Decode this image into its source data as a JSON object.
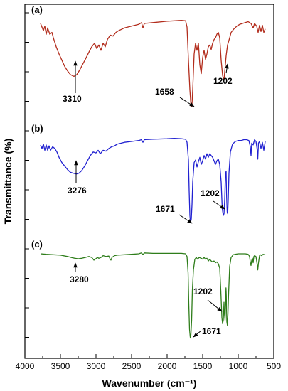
{
  "chart_data": {
    "type": "line",
    "xlabel": "Wavenumber (cm⁻¹)",
    "ylabel": "Transmittance (%)",
    "xlim": [
      4000,
      500
    ],
    "x_reversed": true,
    "xticks": [
      "4000",
      "3500",
      "3000",
      "2500",
      "2000",
      "1500",
      "1000",
      "500"
    ],
    "grid": false,
    "y_tick_labels": "none",
    "panels": [
      {
        "label": "(a)",
        "color": "#b22c1c",
        "series": [
          [
            3780,
            0.96
          ],
          [
            3740,
            0.88
          ],
          [
            3720,
            0.93
          ],
          [
            3700,
            0.84
          ],
          [
            3680,
            0.91
          ],
          [
            3650,
            0.84
          ],
          [
            3620,
            0.86
          ],
          [
            3600,
            0.8
          ],
          [
            3560,
            0.7
          ],
          [
            3520,
            0.62
          ],
          [
            3480,
            0.55
          ],
          [
            3440,
            0.48
          ],
          [
            3400,
            0.43
          ],
          [
            3360,
            0.39
          ],
          [
            3310,
            0.37
          ],
          [
            3270,
            0.39
          ],
          [
            3230,
            0.44
          ],
          [
            3190,
            0.5
          ],
          [
            3150,
            0.56
          ],
          [
            3100,
            0.64
          ],
          [
            3060,
            0.7
          ],
          [
            3020,
            0.74
          ],
          [
            2990,
            0.68
          ],
          [
            2960,
            0.72
          ],
          [
            2930,
            0.66
          ],
          [
            2900,
            0.74
          ],
          [
            2870,
            0.7
          ],
          [
            2840,
            0.78
          ],
          [
            2800,
            0.83
          ],
          [
            2760,
            0.82
          ],
          [
            2720,
            0.86
          ],
          [
            2680,
            0.88
          ],
          [
            2600,
            0.91
          ],
          [
            2500,
            0.93
          ],
          [
            2400,
            0.95
          ],
          [
            2360,
            0.97
          ],
          [
            2340,
            0.91
          ],
          [
            2320,
            0.96
          ],
          [
            2200,
            0.97
          ],
          [
            2000,
            0.985
          ],
          [
            1900,
            0.99
          ],
          [
            1800,
            0.995
          ],
          [
            1740,
            0.99
          ],
          [
            1720,
            0.92
          ],
          [
            1700,
            0.55
          ],
          [
            1680,
            0.22
          ],
          [
            1665,
            0.05
          ],
          [
            1658,
            0.03
          ],
          [
            1650,
            0.06
          ],
          [
            1640,
            0.22
          ],
          [
            1620,
            0.62
          ],
          [
            1600,
            0.74
          ],
          [
            1580,
            0.66
          ],
          [
            1560,
            0.74
          ],
          [
            1540,
            0.5
          ],
          [
            1520,
            0.4
          ],
          [
            1500,
            0.58
          ],
          [
            1480,
            0.66
          ],
          [
            1460,
            0.56
          ],
          [
            1440,
            0.62
          ],
          [
            1420,
            0.7
          ],
          [
            1400,
            0.72
          ],
          [
            1380,
            0.67
          ],
          [
            1360,
            0.74
          ],
          [
            1340,
            0.78
          ],
          [
            1320,
            0.8
          ],
          [
            1300,
            0.84
          ],
          [
            1280,
            0.86
          ],
          [
            1260,
            0.8
          ],
          [
            1240,
            0.55
          ],
          [
            1220,
            0.38
          ],
          [
            1202,
            0.32
          ],
          [
            1190,
            0.42
          ],
          [
            1170,
            0.6
          ],
          [
            1150,
            0.72
          ],
          [
            1120,
            0.8
          ],
          [
            1100,
            0.86
          ],
          [
            1060,
            0.9
          ],
          [
            1020,
            0.93
          ],
          [
            980,
            0.95
          ],
          [
            940,
            0.96
          ],
          [
            900,
            0.97
          ],
          [
            860,
            0.98
          ],
          [
            820,
            0.96
          ],
          [
            790,
            0.91
          ],
          [
            770,
            0.96
          ],
          [
            740,
            0.93
          ],
          [
            720,
            0.86
          ],
          [
            700,
            0.94
          ],
          [
            680,
            0.87
          ],
          [
            660,
            0.94
          ],
          [
            640,
            0.86
          ],
          [
            620,
            0.9
          ]
        ],
        "annotations": [
          {
            "text": "3310",
            "x": 3310
          },
          {
            "text": "1658",
            "x": 1658
          },
          {
            "text": "1202",
            "x": 1202
          }
        ]
      },
      {
        "label": "(b)",
        "color": "#2121d1",
        "series": [
          [
            3780,
            0.92
          ],
          [
            3760,
            0.88
          ],
          [
            3740,
            0.93
          ],
          [
            3720,
            0.86
          ],
          [
            3700,
            0.92
          ],
          [
            3680,
            0.86
          ],
          [
            3660,
            0.91
          ],
          [
            3640,
            0.86
          ],
          [
            3610,
            0.9
          ],
          [
            3580,
            0.88
          ],
          [
            3550,
            0.84
          ],
          [
            3520,
            0.78
          ],
          [
            3480,
            0.72
          ],
          [
            3440,
            0.68
          ],
          [
            3400,
            0.64
          ],
          [
            3360,
            0.61
          ],
          [
            3320,
            0.6
          ],
          [
            3276,
            0.59
          ],
          [
            3240,
            0.6
          ],
          [
            3200,
            0.63
          ],
          [
            3160,
            0.68
          ],
          [
            3120,
            0.74
          ],
          [
            3080,
            0.8
          ],
          [
            3040,
            0.84
          ],
          [
            3000,
            0.83
          ],
          [
            2970,
            0.86
          ],
          [
            2940,
            0.82
          ],
          [
            2900,
            0.86
          ],
          [
            2860,
            0.85
          ],
          [
            2820,
            0.88
          ],
          [
            2780,
            0.9
          ],
          [
            2740,
            0.91
          ],
          [
            2700,
            0.93
          ],
          [
            2600,
            0.95
          ],
          [
            2500,
            0.96
          ],
          [
            2400,
            0.97
          ],
          [
            2360,
            0.98
          ],
          [
            2340,
            0.95
          ],
          [
            2320,
            0.98
          ],
          [
            2200,
            0.985
          ],
          [
            2000,
            0.99
          ],
          [
            1900,
            0.995
          ],
          [
            1800,
            0.99
          ],
          [
            1740,
            0.985
          ],
          [
            1720,
            0.95
          ],
          [
            1700,
            0.75
          ],
          [
            1690,
            0.4
          ],
          [
            1680,
            0.12
          ],
          [
            1671,
            0.04
          ],
          [
            1660,
            0.08
          ],
          [
            1650,
            0.24
          ],
          [
            1640,
            0.5
          ],
          [
            1620,
            0.72
          ],
          [
            1600,
            0.75
          ],
          [
            1580,
            0.67
          ],
          [
            1560,
            0.73
          ],
          [
            1540,
            0.78
          ],
          [
            1520,
            0.7
          ],
          [
            1500,
            0.74
          ],
          [
            1480,
            0.8
          ],
          [
            1460,
            0.76
          ],
          [
            1440,
            0.82
          ],
          [
            1420,
            0.78
          ],
          [
            1400,
            0.82
          ],
          [
            1380,
            0.8
          ],
          [
            1360,
            0.78
          ],
          [
            1340,
            0.74
          ],
          [
            1320,
            0.7
          ],
          [
            1300,
            0.74
          ],
          [
            1280,
            0.76
          ],
          [
            1260,
            0.7
          ],
          [
            1240,
            0.5
          ],
          [
            1225,
            0.2
          ],
          [
            1210,
            0.12
          ],
          [
            1200,
            0.14
          ],
          [
            1190,
            0.3
          ],
          [
            1180,
            0.6
          ],
          [
            1170,
            0.62
          ],
          [
            1165,
            0.38
          ],
          [
            1155,
            0.16
          ],
          [
            1148,
            0.14
          ],
          [
            1140,
            0.3
          ],
          [
            1130,
            0.6
          ],
          [
            1110,
            0.84
          ],
          [
            1080,
            0.93
          ],
          [
            1040,
            0.96
          ],
          [
            1000,
            0.97
          ],
          [
            960,
            0.97
          ],
          [
            920,
            0.98
          ],
          [
            880,
            0.98
          ],
          [
            850,
            0.97
          ],
          [
            830,
            0.9
          ],
          [
            820,
            0.8
          ],
          [
            810,
            0.94
          ],
          [
            790,
            0.92
          ],
          [
            770,
            0.98
          ],
          [
            750,
            0.96
          ],
          [
            735,
            0.88
          ],
          [
            725,
            0.76
          ],
          [
            715,
            0.94
          ],
          [
            700,
            0.96
          ],
          [
            680,
            0.88
          ],
          [
            660,
            0.95
          ],
          [
            640,
            0.86
          ],
          [
            620,
            0.96
          ]
        ],
        "annotations": [
          {
            "text": "3276",
            "x": 3276
          },
          {
            "text": "1671",
            "x": 1671
          },
          {
            "text": "1202",
            "x": 1202
          }
        ]
      },
      {
        "label": "(c)",
        "color": "#2e7d1a",
        "series": [
          [
            3780,
            0.96
          ],
          [
            3700,
            0.955
          ],
          [
            3600,
            0.95
          ],
          [
            3500,
            0.945
          ],
          [
            3400,
            0.93
          ],
          [
            3350,
            0.92
          ],
          [
            3300,
            0.91
          ],
          [
            3250,
            0.905
          ],
          [
            3200,
            0.91
          ],
          [
            3150,
            0.92
          ],
          [
            3100,
            0.93
          ],
          [
            3060,
            0.92
          ],
          [
            3030,
            0.89
          ],
          [
            3010,
            0.9
          ],
          [
            2980,
            0.92
          ],
          [
            2960,
            0.91
          ],
          [
            2930,
            0.92
          ],
          [
            2900,
            0.94
          ],
          [
            2860,
            0.93
          ],
          [
            2820,
            0.935
          ],
          [
            2800,
            0.9
          ],
          [
            2790,
            0.89
          ],
          [
            2775,
            0.92
          ],
          [
            2740,
            0.94
          ],
          [
            2700,
            0.945
          ],
          [
            2600,
            0.95
          ],
          [
            2500,
            0.955
          ],
          [
            2400,
            0.96
          ],
          [
            2360,
            0.97
          ],
          [
            2340,
            0.95
          ],
          [
            2320,
            0.97
          ],
          [
            2200,
            0.965
          ],
          [
            2000,
            0.965
          ],
          [
            1900,
            0.965
          ],
          [
            1800,
            0.965
          ],
          [
            1740,
            0.96
          ],
          [
            1720,
            0.93
          ],
          [
            1705,
            0.75
          ],
          [
            1695,
            0.4
          ],
          [
            1685,
            0.12
          ],
          [
            1675,
            0.03
          ],
          [
            1671,
            0.02
          ],
          [
            1665,
            0.06
          ],
          [
            1655,
            0.22
          ],
          [
            1645,
            0.55
          ],
          [
            1630,
            0.78
          ],
          [
            1610,
            0.9
          ],
          [
            1590,
            0.92
          ],
          [
            1570,
            0.9
          ],
          [
            1550,
            0.92
          ],
          [
            1520,
            0.91
          ],
          [
            1500,
            0.9
          ],
          [
            1480,
            0.92
          ],
          [
            1460,
            0.9
          ],
          [
            1440,
            0.91
          ],
          [
            1420,
            0.88
          ],
          [
            1400,
            0.9
          ],
          [
            1380,
            0.88
          ],
          [
            1360,
            0.87
          ],
          [
            1340,
            0.88
          ],
          [
            1320,
            0.86
          ],
          [
            1300,
            0.87
          ],
          [
            1280,
            0.85
          ],
          [
            1260,
            0.8
          ],
          [
            1245,
            0.55
          ],
          [
            1230,
            0.25
          ],
          [
            1220,
            0.18
          ],
          [
            1210,
            0.22
          ],
          [
            1200,
            0.42
          ],
          [
            1195,
            0.3
          ],
          [
            1185,
            0.22
          ],
          [
            1178,
            0.4
          ],
          [
            1172,
            0.58
          ],
          [
            1168,
            0.5
          ],
          [
            1160,
            0.2
          ],
          [
            1152,
            0.16
          ],
          [
            1145,
            0.28
          ],
          [
            1135,
            0.52
          ],
          [
            1120,
            0.82
          ],
          [
            1100,
            0.92
          ],
          [
            1070,
            0.95
          ],
          [
            1040,
            0.955
          ],
          [
            1000,
            0.96
          ],
          [
            960,
            0.96
          ],
          [
            900,
            0.96
          ],
          [
            860,
            0.955
          ],
          [
            840,
            0.93
          ],
          [
            830,
            0.86
          ],
          [
            820,
            0.83
          ],
          [
            812,
            0.88
          ],
          [
            800,
            0.91
          ],
          [
            790,
            0.86
          ],
          [
            780,
            0.93
          ],
          [
            770,
            0.94
          ],
          [
            750,
            0.93
          ],
          [
            735,
            0.85
          ],
          [
            725,
            0.78
          ],
          [
            715,
            0.86
          ],
          [
            700,
            0.94
          ],
          [
            690,
            0.95
          ],
          [
            670,
            0.94
          ],
          [
            650,
            0.955
          ],
          [
            630,
            0.95
          ],
          [
            620,
            0.955
          ]
        ],
        "annotations": [
          {
            "text": "3280",
            "x": 3280
          },
          {
            "text": "1202",
            "x": 1202
          },
          {
            "text": "1671",
            "x": 1671
          }
        ]
      }
    ]
  }
}
